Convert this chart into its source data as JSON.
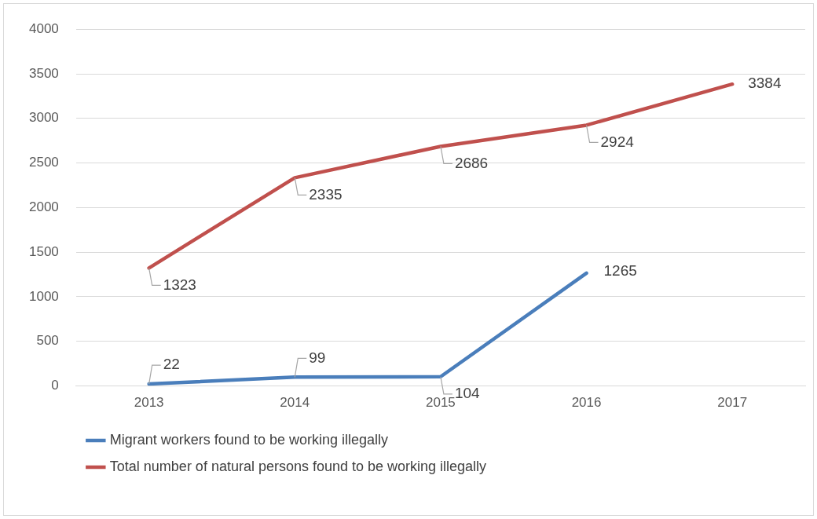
{
  "chart_data": {
    "type": "line",
    "categories": [
      "2013",
      "2014",
      "2015",
      "2016",
      "2017"
    ],
    "series": [
      {
        "name": "Migrant workers found to be working illegally",
        "color": "#4a7ebb",
        "values": [
          22,
          99,
          104,
          1265,
          null
        ]
      },
      {
        "name": "Total number of natural persons found to be working illegally",
        "color": "#c0504d",
        "values": [
          1323,
          2335,
          2686,
          2924,
          3384
        ]
      }
    ],
    "ylim": [
      0,
      4000
    ],
    "yticks": [
      0,
      500,
      1000,
      1500,
      2000,
      2500,
      3000,
      3500,
      4000
    ],
    "grid": "y",
    "legend": "bottom",
    "marker": "none",
    "line_style": "solid",
    "data_labels": true
  }
}
